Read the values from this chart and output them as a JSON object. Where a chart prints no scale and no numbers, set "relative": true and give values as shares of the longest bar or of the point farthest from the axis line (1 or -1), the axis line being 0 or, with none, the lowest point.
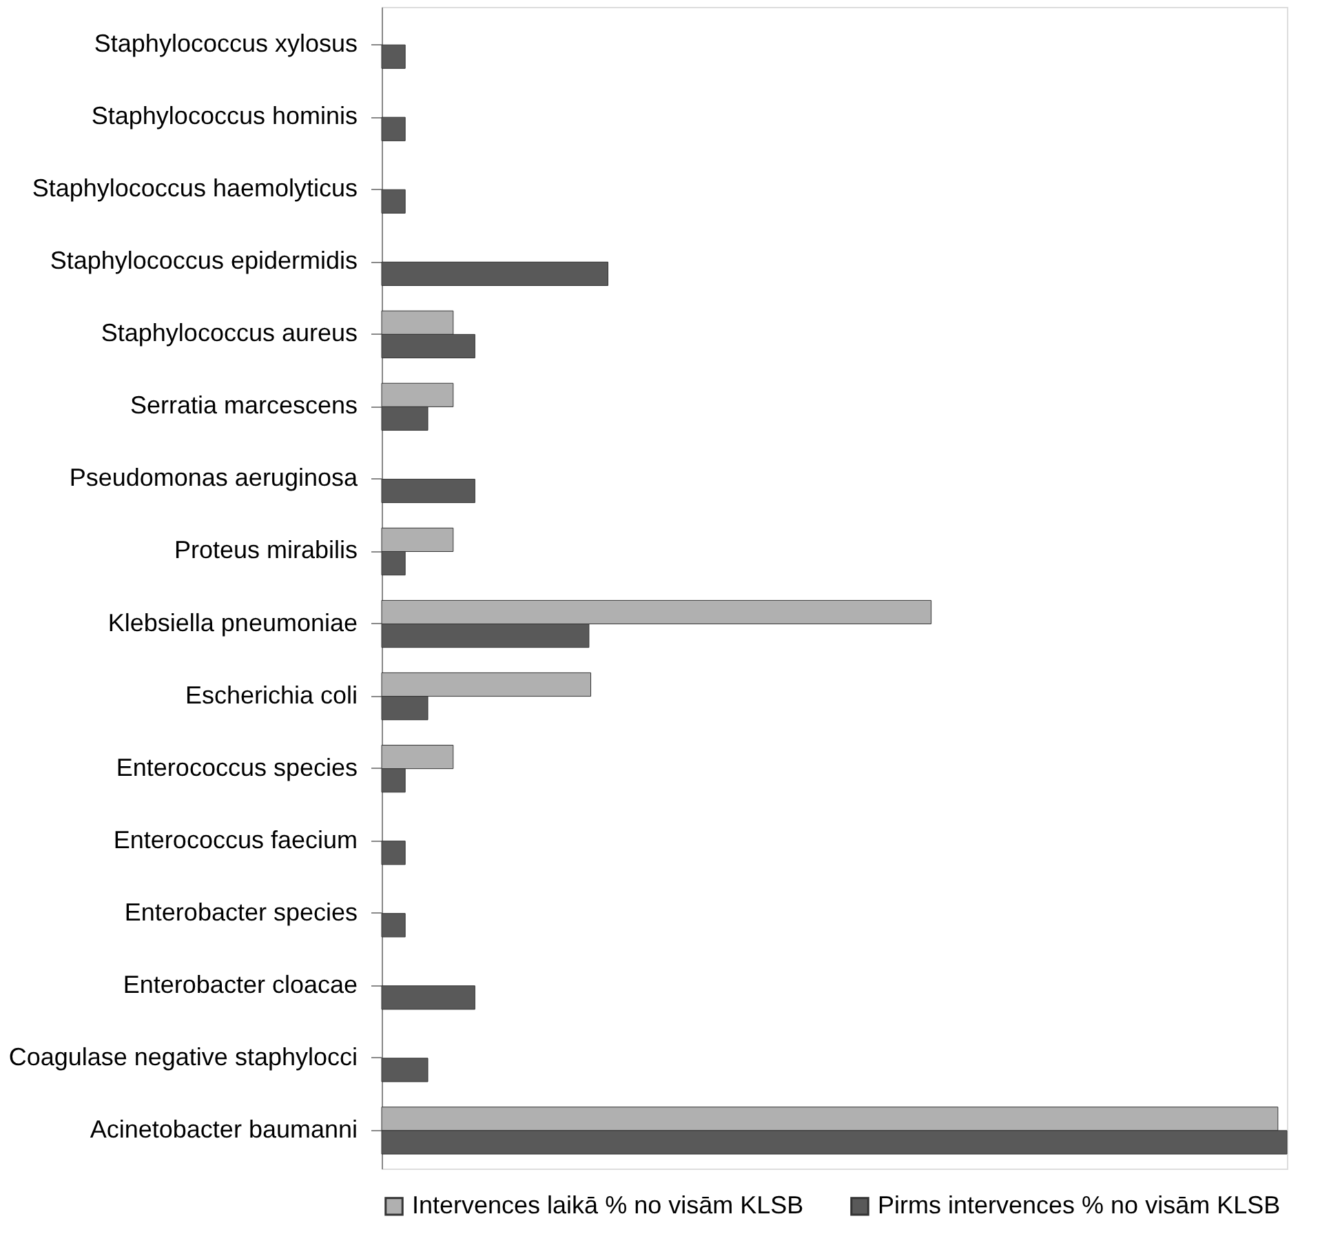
{
  "chart_data": {
    "type": "bar",
    "orientation": "horizontal",
    "relative": true,
    "legend": "bottom",
    "categories": [
      "Staphylococcus xylosus",
      "Staphylococcus hominis",
      "Staphylococcus haemolyticus",
      "Staphylococcus epidermidis",
      "Staphylococcus aureus",
      "Serratia marcescens",
      "Pseudomonas aeruginosa",
      "Proteus mirabilis",
      "Klebsiella pneumoniae",
      "Escherichia coli",
      "Enterococcus species",
      "Enterococcus faecium",
      "Enterobacter species",
      "Enterobacter cloacae",
      "Coagulase negative staphylocci",
      "Acinetobacter baumanni"
    ],
    "series": [
      {
        "name": "Intervences laikā % no visām KLSB",
        "color": "#b0b0b0",
        "values": [
          null,
          null,
          null,
          null,
          0.079,
          0.079,
          null,
          0.079,
          0.607,
          0.231,
          0.079,
          null,
          null,
          null,
          null,
          0.99
        ]
      },
      {
        "name": "Pirms intervences % no visām KLSB",
        "color": "#595959",
        "values": [
          0.026,
          0.026,
          0.026,
          0.25,
          0.103,
          0.051,
          0.103,
          0.026,
          0.229,
          0.051,
          0.026,
          0.026,
          0.026,
          0.103,
          0.051,
          1
        ]
      }
    ]
  }
}
